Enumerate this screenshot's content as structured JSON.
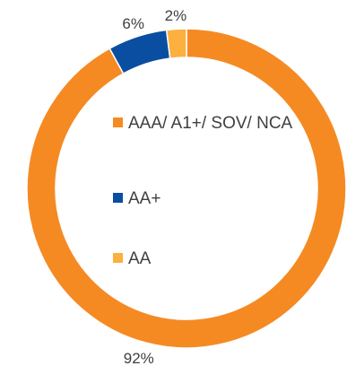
{
  "chart_data": {
    "type": "pie",
    "donut": true,
    "slices": [
      {
        "label": "AAA/ A1+/ SOV/ NCA",
        "value": 92,
        "display": "92%",
        "color": "#F58A23"
      },
      {
        "label": "AA+",
        "value": 6,
        "display": "6%",
        "color": "#0A4EA2"
      },
      {
        "label": "AA",
        "value": 2,
        "display": "2%",
        "color": "#FBB040"
      }
    ],
    "legend": {
      "position": "center"
    }
  }
}
